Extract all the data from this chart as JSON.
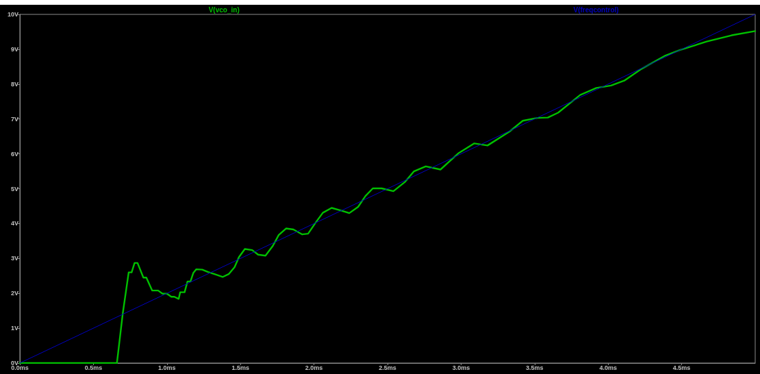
{
  "chart_data": {
    "type": "line",
    "xlim": [
      0,
      5
    ],
    "ylim": [
      0,
      10
    ],
    "xticks": [
      {
        "value": 0,
        "label": "0.0ms"
      },
      {
        "value": 0.5,
        "label": "0.5ms"
      },
      {
        "value": 1,
        "label": "1.0ms"
      },
      {
        "value": 1.5,
        "label": "1.5ms"
      },
      {
        "value": 2,
        "label": "2.0ms"
      },
      {
        "value": 2.5,
        "label": "2.5ms"
      },
      {
        "value": 3,
        "label": "3.0ms"
      },
      {
        "value": 3.5,
        "label": "3.5ms"
      },
      {
        "value": 4,
        "label": "4.0ms"
      },
      {
        "value": 4.5,
        "label": "4.5ms"
      }
    ],
    "yticks": [
      {
        "value": 0,
        "label": "0V"
      },
      {
        "value": 1,
        "label": "1V"
      },
      {
        "value": 2,
        "label": "2V"
      },
      {
        "value": 3,
        "label": "3V"
      },
      {
        "value": 4,
        "label": "4V"
      },
      {
        "value": 5,
        "label": "5V"
      },
      {
        "value": 6,
        "label": "6V"
      },
      {
        "value": 7,
        "label": "7V"
      },
      {
        "value": 8,
        "label": "8V"
      },
      {
        "value": 9,
        "label": "9V"
      },
      {
        "value": 10,
        "label": "10V"
      }
    ],
    "grid": false,
    "legend": "top",
    "marker": "none",
    "line_style": "solid",
    "series": [
      {
        "name": "V(vco_in)",
        "color": "#00c000",
        "x": [
          0,
          0.66,
          0.7,
          0.74,
          0.76,
          0.78,
          0.8,
          0.84,
          0.86,
          0.9,
          0.94,
          0.97,
          1.0,
          1.03,
          1.05,
          1.08,
          1.09,
          1.12,
          1.14,
          1.16,
          1.18,
          1.2,
          1.24,
          1.28,
          1.33,
          1.38,
          1.42,
          1.46,
          1.49,
          1.53,
          1.58,
          1.62,
          1.67,
          1.72,
          1.76,
          1.81,
          1.86,
          1.92,
          1.96,
          2.01,
          2.06,
          2.12,
          2.18,
          2.24,
          2.3,
          2.35,
          2.4,
          2.46,
          2.54,
          2.62,
          2.68,
          2.76,
          2.86,
          2.98,
          3.09,
          3.18,
          3.33,
          3.42,
          3.52,
          3.59,
          3.66,
          3.81,
          3.92,
          4.02,
          4.11,
          4.22,
          4.39,
          4.49,
          4.67,
          4.84,
          5.0
        ],
        "values": [
          0,
          0,
          1.43,
          2.6,
          2.6,
          2.87,
          2.87,
          2.45,
          2.45,
          2.08,
          2.08,
          1.99,
          1.99,
          1.9,
          1.9,
          1.84,
          2.03,
          2.03,
          2.34,
          2.34,
          2.59,
          2.69,
          2.68,
          2.61,
          2.54,
          2.47,
          2.55,
          2.75,
          3.04,
          3.27,
          3.24,
          3.11,
          3.08,
          3.36,
          3.67,
          3.86,
          3.83,
          3.69,
          3.71,
          4.02,
          4.31,
          4.45,
          4.38,
          4.3,
          4.48,
          4.79,
          5.01,
          5.01,
          4.93,
          5.2,
          5.5,
          5.64,
          5.55,
          6.01,
          6.3,
          6.24,
          6.64,
          6.95,
          7.03,
          7.04,
          7.18,
          7.69,
          7.89,
          7.96,
          8.1,
          8.42,
          8.82,
          8.98,
          9.22,
          9.4,
          9.52
        ]
      },
      {
        "name": "V(freqcontrol)",
        "color": "#0000c0",
        "x": [
          0,
          5
        ],
        "values": [
          0,
          10
        ]
      }
    ]
  }
}
